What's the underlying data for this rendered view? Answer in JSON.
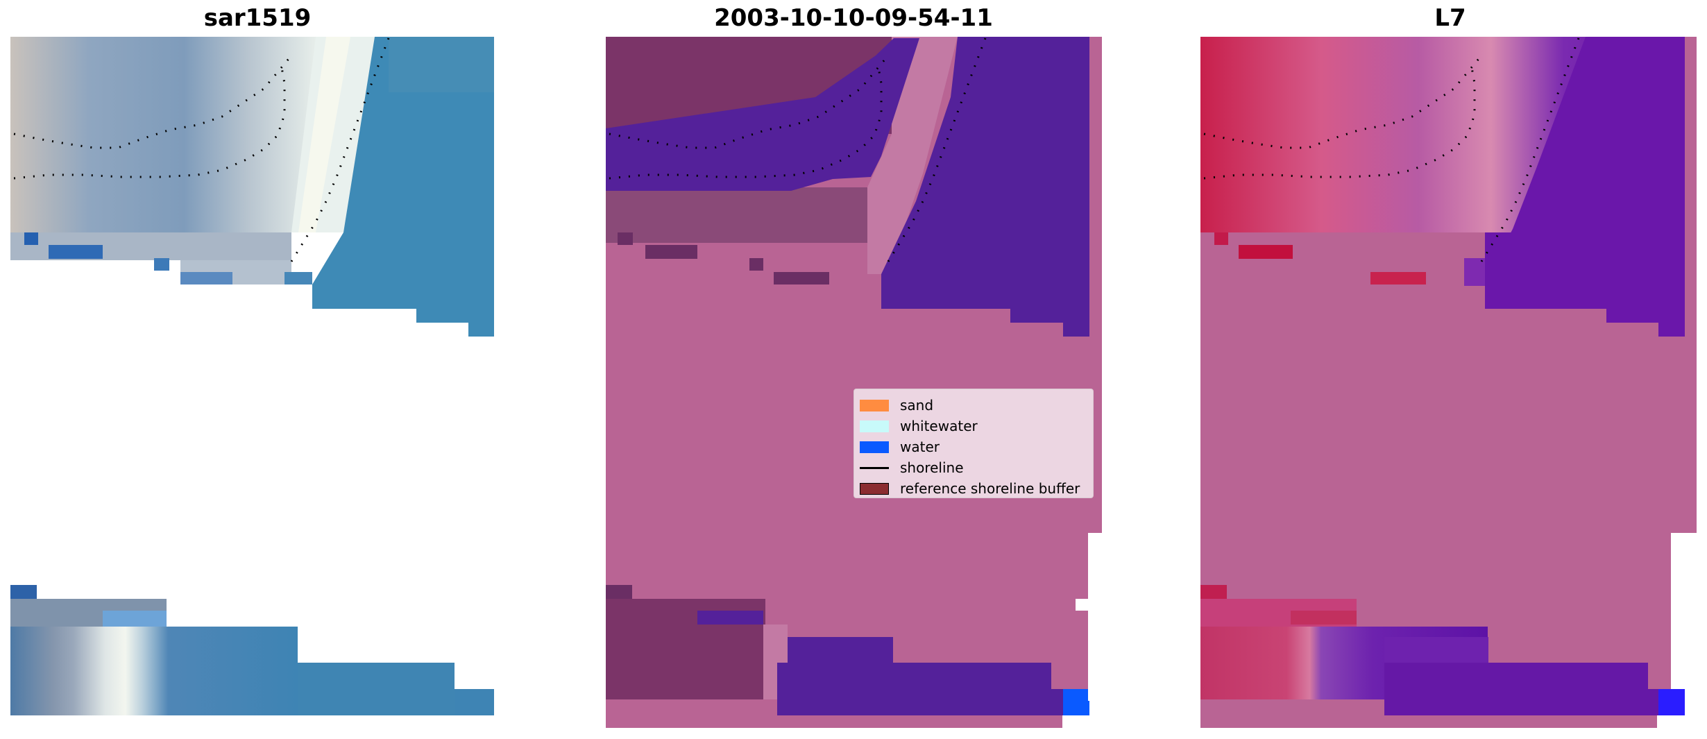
{
  "panels": [
    {
      "title": "sar1519"
    },
    {
      "title": "2003-10-10-09-54-11"
    },
    {
      "title": "L7"
    }
  ],
  "legend": {
    "placement": "center-right of middle panel",
    "items": [
      {
        "label": "sand",
        "color": "#ff8c40",
        "kind": "patch"
      },
      {
        "label": "whitewater",
        "color": "#c8fafa",
        "kind": "patch"
      },
      {
        "label": "water",
        "color": "#0a5aff",
        "kind": "patch"
      },
      {
        "label": "shoreline",
        "color": "#000000",
        "kind": "line"
      },
      {
        "label": "reference shoreline buffer",
        "color": "#8b2c30",
        "kind": "patch",
        "edge": "#000000"
      }
    ]
  },
  "colors": {
    "land_mask": "#b96494",
    "water_classified": "#54219a",
    "buffer_classified": "#7a3468",
    "ocean_rgb": "#3d8db8",
    "whitewater_rgb": "#eaf4f2",
    "l7_pink": "#cf3f7a",
    "l7_purple": "#6e18b0"
  }
}
